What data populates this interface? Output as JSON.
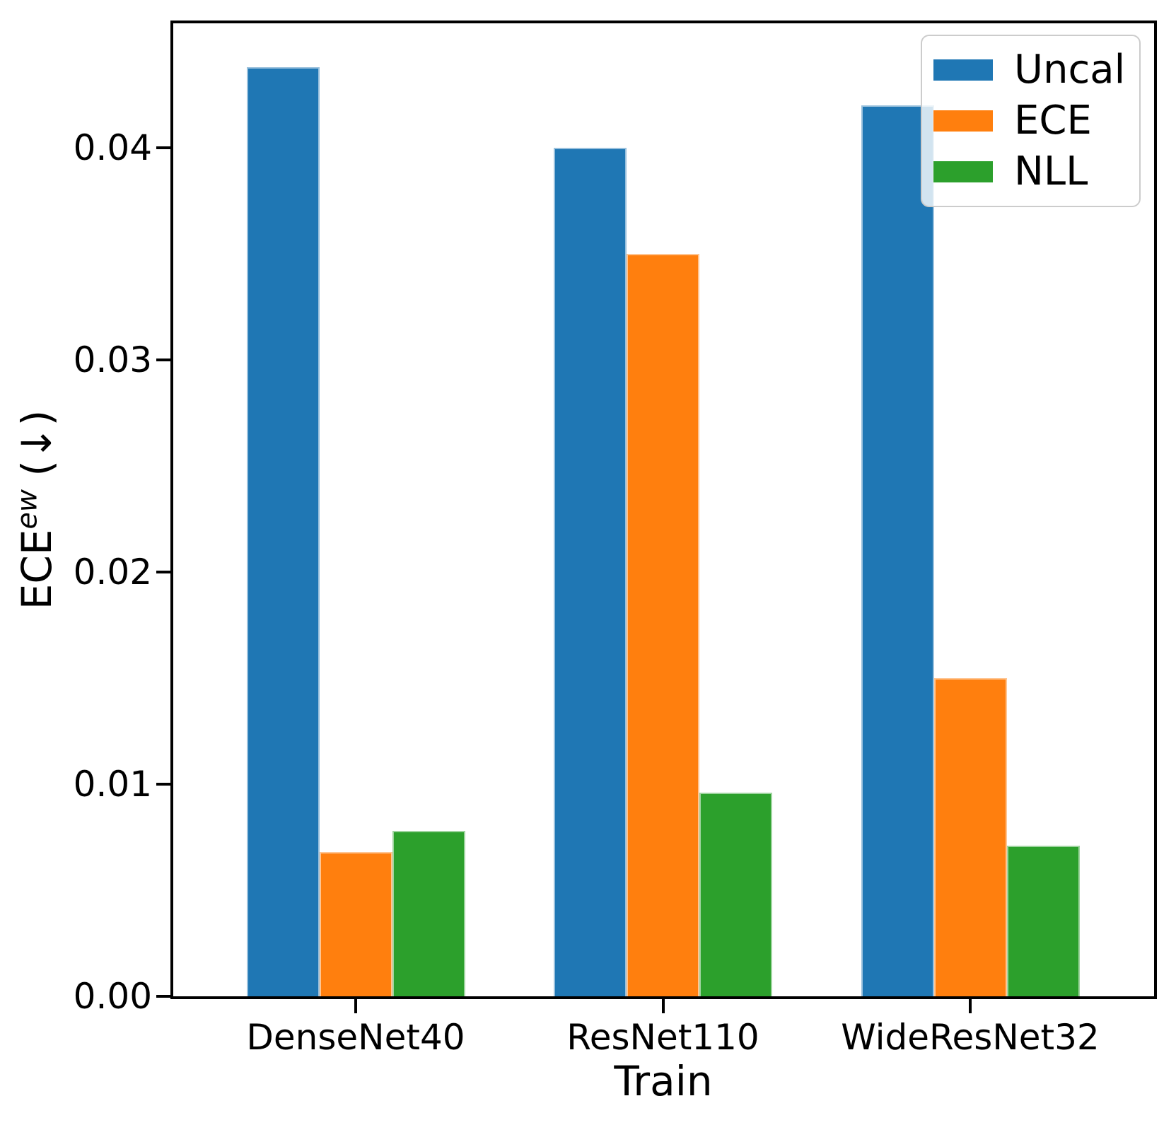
{
  "figure": {
    "xlabel": "Train",
    "ylabel_base": "ECE",
    "ylabel_sup": "ew",
    "ylabel_rest": " (↓)"
  },
  "chart_data": {
    "type": "bar",
    "title": "",
    "categories": [
      "DenseNet40",
      "ResNet110",
      "WideResNet32"
    ],
    "series": [
      {
        "name": "Uncal",
        "color": "#1f77b4",
        "values": [
          0.0438,
          0.04,
          0.042
        ]
      },
      {
        "name": "ECE",
        "color": "#ff7f0e",
        "values": [
          0.0068,
          0.035,
          0.015
        ]
      },
      {
        "name": "NLL",
        "color": "#2ca02c",
        "values": [
          0.0078,
          0.0096,
          0.0071
        ]
      }
    ],
    "xlabel": "Train",
    "ylabel": "ECE^ew (↓)",
    "ylim": [
      0,
      0.046
    ],
    "yticks": [
      "0.00",
      "0.01",
      "0.02",
      "0.03",
      "0.04"
    ],
    "ytick_values": [
      0.0,
      0.01,
      0.02,
      0.03,
      0.04
    ],
    "legend_position": "upper right",
    "legend_entries": [
      "Uncal",
      "ECE",
      "NLL"
    ],
    "grid": false
  }
}
